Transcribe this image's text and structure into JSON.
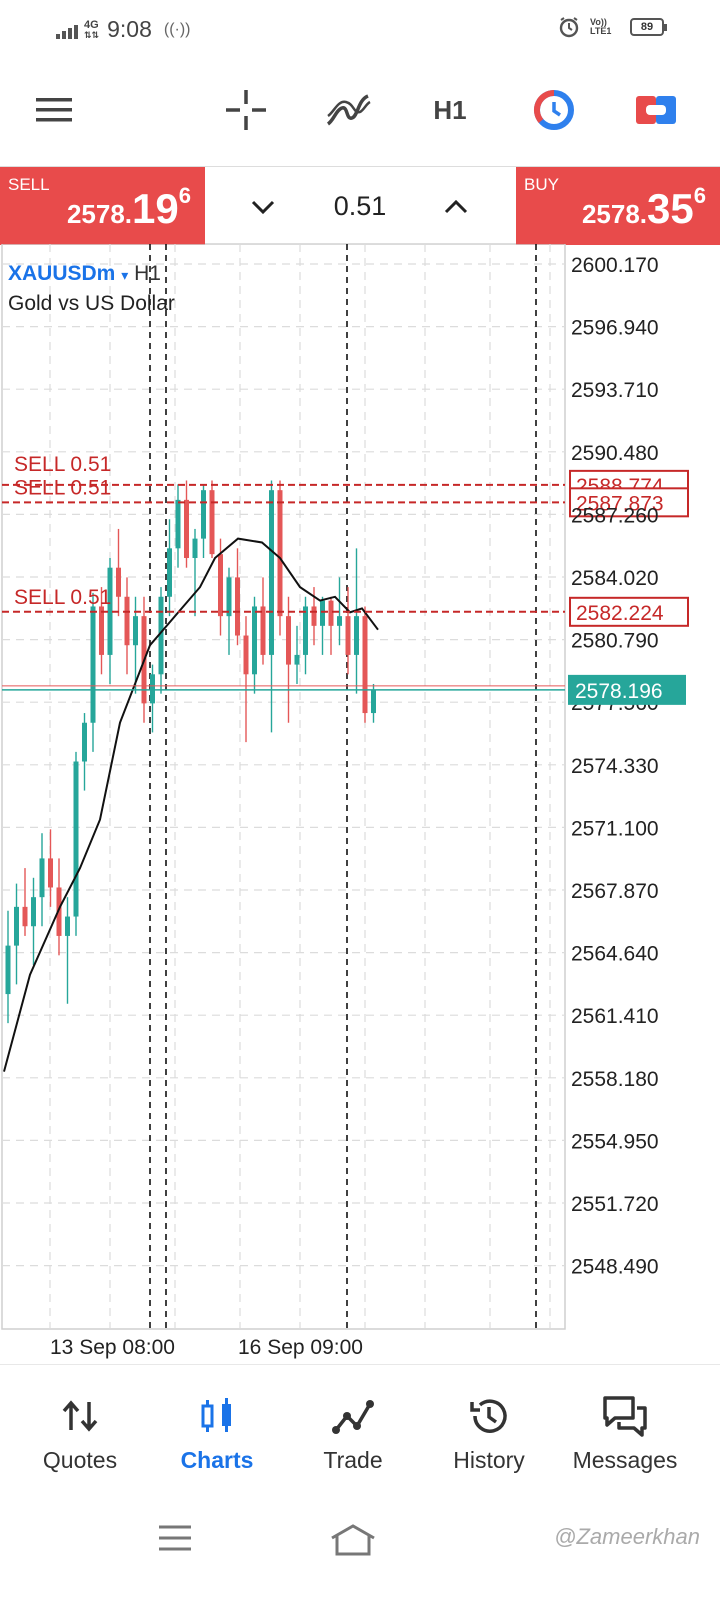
{
  "status_bar": {
    "network": "4G",
    "time": "9:08",
    "volte": "Vo)) LTE1",
    "battery": "89"
  },
  "toolbar": {
    "crosshair_icon": "crosshair-icon",
    "indicators_icon": "indicators-icon",
    "timeframe": "H1",
    "chart_type_icon": "clock-style-icon",
    "trade_toggle_icon": "toggle-icon"
  },
  "trade_panel": {
    "sell_label": "SELL",
    "sell_price_main": "2578.",
    "sell_price_big": "19",
    "sell_price_sup": "6",
    "buy_label": "BUY",
    "buy_price_main": "2578.",
    "buy_price_big": "35",
    "buy_price_sup": "6",
    "lot": "0.51"
  },
  "chart": {
    "symbol": "XAUUSDm",
    "caret": "▾",
    "timeframe": "H1",
    "description": "Gold vs US Dollar",
    "price_axis": [
      "2600.170",
      "2596.940",
      "2593.710",
      "2590.480",
      "2587.260",
      "2584.020",
      "2580.790",
      "2577.560",
      "2574.330",
      "2571.100",
      "2567.870",
      "2564.640",
      "2561.410",
      "2558.180",
      "2554.950",
      "2551.720",
      "2548.490"
    ],
    "time_axis": [
      "13 Sep 08:00",
      "16 Sep 09:00"
    ],
    "order_lines": [
      {
        "label": "SELL 0.51",
        "price": "2588.774"
      },
      {
        "label": "SELL 0.51",
        "price": "2587.873"
      },
      {
        "label": "SELL 0.51",
        "price": "2582.224"
      }
    ],
    "current_price": "2578.196",
    "colors": {
      "bull": "#26a69a",
      "bear": "#e45757",
      "order": "#c62828",
      "current": "#26a69a"
    }
  },
  "bottom_nav": [
    {
      "label": "Quotes",
      "icon": "quotes-icon"
    },
    {
      "label": "Charts",
      "icon": "charts-icon"
    },
    {
      "label": "Trade",
      "icon": "trade-icon"
    },
    {
      "label": "History",
      "icon": "history-icon"
    },
    {
      "label": "Messages",
      "icon": "messages-icon"
    }
  ],
  "watermark": "@Zameerkhan"
}
